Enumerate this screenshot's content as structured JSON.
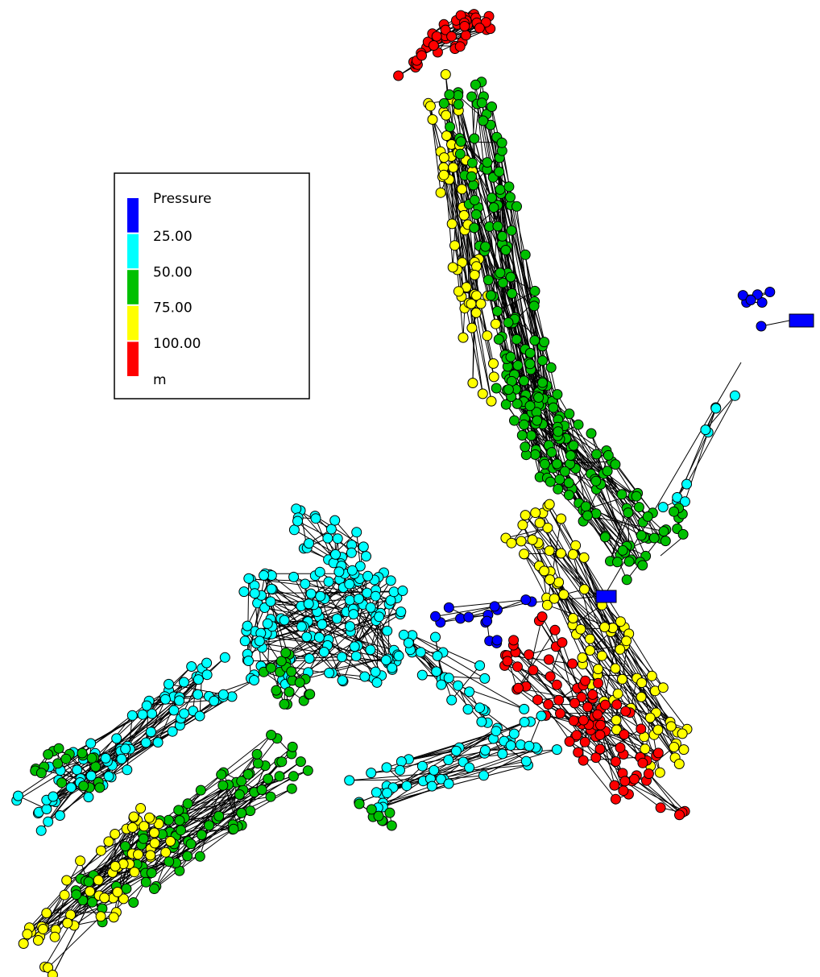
{
  "legend": {
    "title": "Pressure",
    "labels": [
      "25.00",
      "50.00",
      "75.00",
      "100.00"
    ],
    "unit": "m",
    "colors": [
      "#0000ff",
      "#00ffff",
      "#00c000",
      "#ffff00",
      "#ff0000"
    ]
  }
}
